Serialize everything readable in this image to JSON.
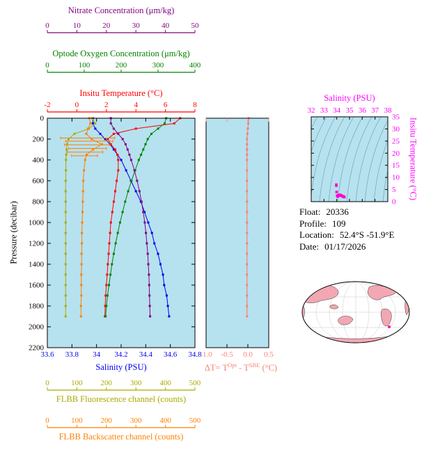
{
  "colors": {
    "panel_bg": "#b6e1ef",
    "frame": "#000000",
    "nitrate": "#800080",
    "oxygen": "#008000",
    "temperature": "#ff0000",
    "salinity": "#0000ee",
    "fluorescence": "#aaaa00",
    "backscatter": "#ff8000",
    "delta_t": "#fa8072",
    "ts": "#ff00ff",
    "ts_marker": "#ff00cc",
    "contour": "#4d8494",
    "map_land": "#f2a7b2",
    "map_marker": "#ff00bb"
  },
  "info": {
    "rows": [
      {
        "label": "Float:",
        "value": "20336"
      },
      {
        "label": "Profile:",
        "value": "109"
      },
      {
        "label": "Location:",
        "value": "52.4°S -51.9°E"
      },
      {
        "label": "Date:",
        "value": "01/17/2026"
      }
    ]
  },
  "chart_data": [
    {
      "type": "line",
      "name": "depth-profile-plot",
      "y_axis": {
        "title": "Pressure (decibar)",
        "range": [
          0,
          2200
        ],
        "ticks": [
          0,
          200,
          400,
          600,
          800,
          1000,
          1200,
          1400,
          1600,
          1800,
          2000,
          2200
        ]
      },
      "pressure_dbar": [
        0,
        50,
        100,
        150,
        200,
        250,
        300,
        350,
        400,
        500,
        600,
        700,
        800,
        900,
        1000,
        1100,
        1200,
        1300,
        1400,
        1500,
        1600,
        1700,
        1800,
        1900
      ],
      "x_axes": {
        "nitrate": {
          "title": "Nitrate Concentration (μm/kg)",
          "range": [
            0,
            50
          ],
          "ticks": [
            "0",
            "10",
            "20",
            "30",
            "40",
            "50"
          ],
          "position": "top"
        },
        "oxygen": {
          "title": "Optode Oxygen Concentration (μm/kg)",
          "range": [
            0,
            400
          ],
          "ticks": [
            "0",
            "100",
            "200",
            "300",
            "400"
          ],
          "position": "top"
        },
        "temperature": {
          "title": "Insitu Temperature (°C)",
          "range": [
            -2,
            8
          ],
          "ticks": [
            "-2",
            "0",
            "2",
            "4",
            "6",
            "8"
          ],
          "position": "top"
        },
        "salinity": {
          "title": "Salinity (PSU)",
          "range": [
            33.6,
            34.8
          ],
          "ticks": [
            "33.6",
            "33.8",
            "34",
            "34.2",
            "34.4",
            "34.6",
            "34.8"
          ],
          "position": "bottom"
        },
        "fluorescence": {
          "title": "FLBB Fluorescence channel (counts)",
          "range": [
            0,
            500
          ],
          "ticks": [
            "0",
            "100",
            "200",
            "300",
            "400",
            "500"
          ],
          "position": "bottom"
        },
        "backscatter": {
          "title": "FLBB Backscatter channel (counts)",
          "range": [
            0,
            500
          ],
          "ticks": [
            "0",
            "100",
            "200",
            "300",
            "400",
            "500"
          ],
          "position": "bottom"
        }
      },
      "series": [
        {
          "axis": "salinity",
          "name": "Salinity (PSU)",
          "values": [
            33.97,
            33.97,
            33.99,
            34.03,
            34.07,
            34.11,
            34.14,
            34.17,
            34.2,
            34.24,
            34.28,
            34.32,
            34.36,
            34.39,
            34.42,
            34.45,
            34.47,
            34.5,
            34.52,
            34.54,
            34.55,
            34.57,
            34.58,
            34.59
          ]
        },
        {
          "axis": "temperature",
          "name": "Insitu Temperature (°C)",
          "values": [
            7.0,
            6.6,
            4.0,
            2.5,
            2.1,
            2.3,
            2.6,
            2.75,
            2.8,
            2.8,
            2.7,
            2.6,
            2.5,
            2.4,
            2.3,
            2.25,
            2.2,
            2.15,
            2.1,
            2.05,
            2.0,
            1.95,
            1.92,
            1.9
          ]
        },
        {
          "axis": "oxygen",
          "name": "Optode Oxygen Concentration (μm/kg)",
          "values": [
            322,
            318,
            300,
            282,
            272,
            266,
            260,
            254,
            248,
            238,
            228,
            219,
            211,
            204,
            197,
            191,
            185,
            180,
            175,
            171,
            167,
            163,
            160,
            158
          ]
        },
        {
          "axis": "nitrate",
          "name": "Nitrate Concentration (μm/kg)",
          "values": [
            21.5,
            21.5,
            22.5,
            24.0,
            25.5,
            26.5,
            27.2,
            27.8,
            28.4,
            29.5,
            30.4,
            31.2,
            31.9,
            32.5,
            33.0,
            33.4,
            33.7,
            34.0,
            34.2,
            34.4,
            34.5,
            34.6,
            34.7,
            34.8
          ]
        },
        {
          "axis": "fluorescence",
          "name": "FLBB Fluorescence channel (counts)",
          "values": [
            152,
            162,
            140,
            92,
            72,
            67,
            65,
            64,
            63,
            63,
            62,
            62,
            62,
            62,
            62,
            62,
            62,
            62,
            62,
            62,
            62,
            62,
            62,
            62
          ]
        },
        {
          "axis": "backscatter",
          "name": "FLBB Backscatter channel (counts)",
          "values": [
            142,
            146,
            138,
            132,
            150,
            185,
            155,
            133,
            128,
            124,
            122,
            121,
            120,
            119,
            118,
            117,
            117,
            116,
            116,
            115,
            115,
            115,
            114,
            114
          ]
        }
      ],
      "backscatter_spikes": [
        {
          "p": 190,
          "lo": 45,
          "hi": 228
        },
        {
          "p": 220,
          "lo": 62,
          "hi": 222
        },
        {
          "p": 255,
          "lo": 58,
          "hi": 212
        },
        {
          "p": 290,
          "lo": 72,
          "hi": 200
        },
        {
          "p": 325,
          "lo": 68,
          "hi": 188
        },
        {
          "p": 360,
          "lo": 82,
          "hi": 170
        }
      ]
    },
    {
      "type": "line",
      "name": "optode-sbe-temperature-difference",
      "x_axis": {
        "range": [
          -1.0,
          0.5
        ],
        "ticks": [
          "-1.0",
          "-0.5",
          "0.0",
          "0.5"
        ]
      },
      "title_parts": {
        "pre": "ΔT= T",
        "sup1": "Opt",
        "mid": " - T",
        "sup2": "SBE",
        "post": " (°C)"
      },
      "values": [
        0.02,
        0.01,
        0.0,
        -0.01,
        -0.02,
        -0.02,
        -0.02,
        -0.02,
        -0.02,
        -0.02,
        -0.02,
        -0.02,
        -0.02,
        -0.02,
        -0.02,
        -0.02,
        -0.02,
        -0.02,
        -0.02,
        -0.02,
        -0.02,
        -0.02,
        -0.02,
        -0.02
      ]
    },
    {
      "type": "scatter",
      "name": "ts-diagram",
      "x_axis": {
        "title": "Salinity (PSU)",
        "range": [
          32,
          38
        ],
        "ticks": [
          "32",
          "33",
          "34",
          "35",
          "36",
          "37",
          "38"
        ]
      },
      "y_axis": {
        "title": "Insitu Temperature (°C)",
        "range": [
          0,
          35
        ],
        "ticks": [
          "0",
          "5",
          "10",
          "15",
          "20",
          "25",
          "30",
          "35"
        ]
      },
      "points_from": "salinity and temperature profile series",
      "contours": "potential-density isolines (decorative fan)"
    }
  ]
}
